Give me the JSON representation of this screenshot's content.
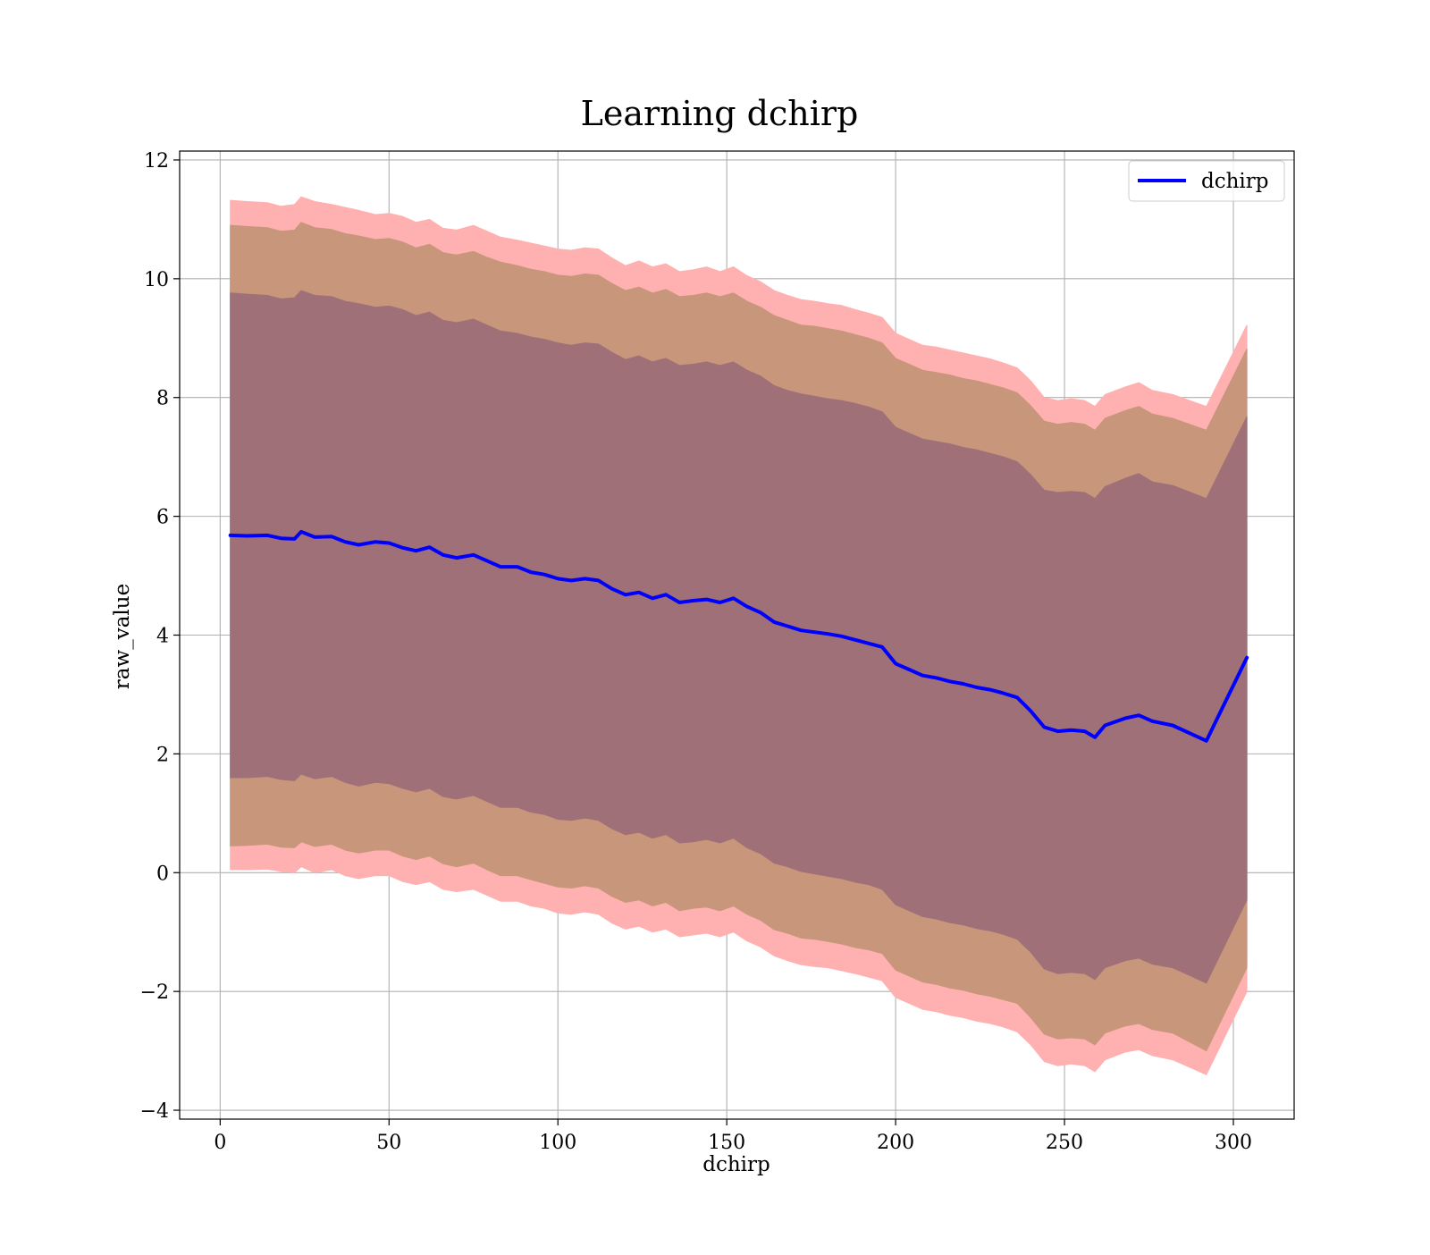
{
  "chart_data": {
    "type": "line",
    "title": "Learning dchirp",
    "xlabel": "dchirp",
    "ylabel": "raw_value",
    "xlim": [
      -12,
      318
    ],
    "ylim": [
      -4.15,
      12.15
    ],
    "grid": true,
    "legend_position": "top-right",
    "x_ticks": [
      0,
      50,
      100,
      150,
      200,
      250,
      300
    ],
    "x_tick_labels": [
      "0",
      "50",
      "100",
      "150",
      "200",
      "250",
      "300"
    ],
    "y_ticks": [
      -4,
      -2,
      0,
      2,
      4,
      6,
      8,
      10,
      12
    ],
    "y_tick_labels": [
      "−4",
      "−2",
      "0",
      "2",
      "4",
      "6",
      "8",
      "10",
      "12"
    ],
    "colors": {
      "line": "#0000ff",
      "band_outer": "#ffb0b0",
      "band_middle": "#c8967a",
      "band_inner": "#a07078",
      "grid": "#b0b0b0"
    },
    "series": [
      {
        "name": "dchirp",
        "x": [
          3,
          8,
          14,
          18,
          22,
          24,
          28,
          33,
          37,
          41,
          46,
          50,
          54,
          58,
          62,
          66,
          70,
          75,
          79,
          83,
          88,
          92,
          96,
          100,
          104,
          108,
          112,
          116,
          120,
          124,
          128,
          132,
          136,
          140,
          144,
          148,
          152,
          156,
          160,
          164,
          168,
          172,
          176,
          180,
          184,
          188,
          192,
          196,
          200,
          204,
          208,
          212,
          216,
          220,
          224,
          228,
          232,
          236,
          240,
          244,
          248,
          252,
          256,
          259,
          262,
          268,
          272,
          276,
          282,
          292,
          304
        ],
        "y": [
          5.68,
          5.67,
          5.68,
          5.63,
          5.62,
          5.74,
          5.65,
          5.66,
          5.57,
          5.52,
          5.57,
          5.55,
          5.47,
          5.42,
          5.48,
          5.35,
          5.3,
          5.35,
          5.25,
          5.15,
          5.15,
          5.06,
          5.02,
          4.95,
          4.92,
          4.95,
          4.92,
          4.78,
          4.68,
          4.72,
          4.62,
          4.68,
          4.55,
          4.58,
          4.6,
          4.55,
          4.62,
          4.48,
          4.38,
          4.22,
          4.15,
          4.08,
          4.05,
          4.02,
          3.98,
          3.92,
          3.86,
          3.8,
          3.52,
          3.42,
          3.32,
          3.28,
          3.22,
          3.18,
          3.12,
          3.08,
          3.02,
          2.95,
          2.72,
          2.45,
          2.38,
          2.4,
          2.38,
          2.28,
          2.48,
          2.6,
          2.65,
          2.55,
          2.48,
          2.22,
          3.62
        ]
      }
    ],
    "bands": [
      {
        "x": [
          3,
          8,
          14,
          18,
          22,
          24,
          28,
          33,
          37,
          41,
          46,
          50,
          54,
          58,
          62,
          66,
          70,
          75,
          79,
          83,
          88,
          92,
          96,
          100,
          104,
          108,
          112,
          116,
          120,
          124,
          128,
          132,
          136,
          140,
          144,
          148,
          152,
          156,
          160,
          164,
          168,
          172,
          176,
          180,
          184,
          188,
          192,
          196,
          200,
          204,
          208,
          212,
          216,
          220,
          224,
          228,
          232,
          236,
          240,
          244,
          248,
          252,
          256,
          259,
          262,
          268,
          272,
          276,
          282,
          292,
          304
        ],
        "upper": [
          11.32,
          11.3,
          11.28,
          11.22,
          11.25,
          11.38,
          11.3,
          11.25,
          11.2,
          11.15,
          11.08,
          11.1,
          11.05,
          10.95,
          11.0,
          10.85,
          10.82,
          10.9,
          10.8,
          10.7,
          10.65,
          10.6,
          10.55,
          10.5,
          10.48,
          10.52,
          10.5,
          10.35,
          10.22,
          10.3,
          10.2,
          10.25,
          10.12,
          10.15,
          10.2,
          10.12,
          10.2,
          10.05,
          9.95,
          9.8,
          9.72,
          9.65,
          9.62,
          9.58,
          9.55,
          9.48,
          9.42,
          9.35,
          9.08,
          8.98,
          8.88,
          8.85,
          8.8,
          8.75,
          8.7,
          8.65,
          8.58,
          8.5,
          8.28,
          8.0,
          7.95,
          7.98,
          7.95,
          7.85,
          8.05,
          8.18,
          8.25,
          8.12,
          8.05,
          7.85,
          9.22
        ],
        "lower": [
          0.05,
          0.05,
          0.06,
          0.02,
          0.0,
          0.1,
          0.0,
          0.05,
          -0.05,
          -0.1,
          -0.05,
          -0.05,
          -0.15,
          -0.2,
          -0.15,
          -0.28,
          -0.32,
          -0.28,
          -0.38,
          -0.48,
          -0.48,
          -0.56,
          -0.6,
          -0.68,
          -0.7,
          -0.66,
          -0.7,
          -0.85,
          -0.95,
          -0.9,
          -1.0,
          -0.95,
          -1.08,
          -1.05,
          -1.02,
          -1.08,
          -1.0,
          -1.15,
          -1.25,
          -1.4,
          -1.48,
          -1.55,
          -1.58,
          -1.6,
          -1.65,
          -1.7,
          -1.76,
          -1.82,
          -2.1,
          -2.2,
          -2.3,
          -2.34,
          -2.4,
          -2.44,
          -2.5,
          -2.54,
          -2.6,
          -2.68,
          -2.9,
          -3.18,
          -3.25,
          -3.22,
          -3.25,
          -3.35,
          -3.15,
          -3.02,
          -2.98,
          -3.08,
          -3.15,
          -3.4,
          -2.0
        ],
        "color": "#ffb0b0"
      },
      {
        "x": [
          3,
          8,
          14,
          18,
          22,
          24,
          28,
          33,
          37,
          41,
          46,
          50,
          54,
          58,
          62,
          66,
          70,
          75,
          79,
          83,
          88,
          92,
          96,
          100,
          104,
          108,
          112,
          116,
          120,
          124,
          128,
          132,
          136,
          140,
          144,
          148,
          152,
          156,
          160,
          164,
          168,
          172,
          176,
          180,
          184,
          188,
          192,
          196,
          200,
          204,
          208,
          212,
          216,
          220,
          224,
          228,
          232,
          236,
          240,
          244,
          248,
          252,
          256,
          259,
          262,
          268,
          272,
          276,
          282,
          292,
          304
        ],
        "upper": [
          10.9,
          10.88,
          10.86,
          10.8,
          10.82,
          10.95,
          10.86,
          10.83,
          10.76,
          10.72,
          10.66,
          10.68,
          10.62,
          10.52,
          10.58,
          10.44,
          10.4,
          10.46,
          10.36,
          10.28,
          10.22,
          10.16,
          10.12,
          10.06,
          10.04,
          10.08,
          10.06,
          9.92,
          9.8,
          9.86,
          9.76,
          9.82,
          9.7,
          9.72,
          9.76,
          9.7,
          9.76,
          9.62,
          9.52,
          9.38,
          9.3,
          9.22,
          9.2,
          9.16,
          9.12,
          9.06,
          9.0,
          8.92,
          8.66,
          8.56,
          8.46,
          8.42,
          8.38,
          8.32,
          8.28,
          8.22,
          8.16,
          8.08,
          7.86,
          7.6,
          7.55,
          7.58,
          7.55,
          7.45,
          7.65,
          7.78,
          7.85,
          7.72,
          7.65,
          7.45,
          8.82
        ],
        "lower": [
          0.45,
          0.46,
          0.48,
          0.43,
          0.42,
          0.52,
          0.44,
          0.48,
          0.38,
          0.33,
          0.38,
          0.38,
          0.28,
          0.22,
          0.28,
          0.15,
          0.1,
          0.16,
          0.05,
          -0.05,
          -0.05,
          -0.12,
          -0.18,
          -0.24,
          -0.26,
          -0.22,
          -0.26,
          -0.4,
          -0.5,
          -0.46,
          -0.56,
          -0.5,
          -0.64,
          -0.6,
          -0.58,
          -0.64,
          -0.56,
          -0.7,
          -0.8,
          -0.96,
          -1.02,
          -1.1,
          -1.12,
          -1.16,
          -1.2,
          -1.26,
          -1.3,
          -1.36,
          -1.64,
          -1.74,
          -1.84,
          -1.88,
          -1.94,
          -1.98,
          -2.04,
          -2.08,
          -2.14,
          -2.2,
          -2.44,
          -2.72,
          -2.8,
          -2.78,
          -2.8,
          -2.9,
          -2.7,
          -2.58,
          -2.54,
          -2.64,
          -2.7,
          -3.0,
          -1.6
        ],
        "color": "#c8967a"
      },
      {
        "x": [
          3,
          8,
          14,
          18,
          22,
          24,
          28,
          33,
          37,
          41,
          46,
          50,
          54,
          58,
          62,
          66,
          70,
          75,
          79,
          83,
          88,
          92,
          96,
          100,
          104,
          108,
          112,
          116,
          120,
          124,
          128,
          132,
          136,
          140,
          144,
          148,
          152,
          156,
          160,
          164,
          168,
          172,
          176,
          180,
          184,
          188,
          192,
          196,
          200,
          204,
          208,
          212,
          216,
          220,
          224,
          228,
          232,
          236,
          240,
          244,
          248,
          252,
          256,
          259,
          262,
          268,
          272,
          276,
          282,
          292,
          304
        ],
        "upper": [
          9.76,
          9.74,
          9.72,
          9.66,
          9.68,
          9.8,
          9.72,
          9.7,
          9.62,
          9.58,
          9.52,
          9.54,
          9.48,
          9.38,
          9.44,
          9.3,
          9.26,
          9.32,
          9.22,
          9.12,
          9.08,
          9.02,
          8.98,
          8.92,
          8.88,
          8.92,
          8.9,
          8.76,
          8.64,
          8.7,
          8.6,
          8.66,
          8.54,
          8.56,
          8.6,
          8.54,
          8.6,
          8.46,
          8.36,
          8.2,
          8.12,
          8.06,
          8.02,
          7.98,
          7.95,
          7.9,
          7.84,
          7.76,
          7.5,
          7.4,
          7.3,
          7.26,
          7.22,
          7.16,
          7.12,
          7.06,
          7.0,
          6.92,
          6.7,
          6.44,
          6.4,
          6.42,
          6.4,
          6.3,
          6.5,
          6.64,
          6.72,
          6.58,
          6.52,
          6.3,
          7.68
        ],
        "lower": [
          1.6,
          1.6,
          1.62,
          1.57,
          1.55,
          1.66,
          1.58,
          1.62,
          1.52,
          1.46,
          1.52,
          1.5,
          1.42,
          1.36,
          1.42,
          1.28,
          1.24,
          1.3,
          1.2,
          1.1,
          1.1,
          1.02,
          0.98,
          0.9,
          0.88,
          0.92,
          0.88,
          0.74,
          0.64,
          0.68,
          0.58,
          0.64,
          0.5,
          0.52,
          0.56,
          0.5,
          0.58,
          0.42,
          0.32,
          0.16,
          0.1,
          0.02,
          -0.02,
          -0.06,
          -0.1,
          -0.16,
          -0.2,
          -0.28,
          -0.54,
          -0.64,
          -0.74,
          -0.78,
          -0.84,
          -0.88,
          -0.94,
          -0.98,
          -1.04,
          -1.12,
          -1.34,
          -1.62,
          -1.7,
          -1.68,
          -1.7,
          -1.8,
          -1.6,
          -1.48,
          -1.44,
          -1.54,
          -1.6,
          -1.86,
          -0.46
        ],
        "color": "#a07078"
      }
    ]
  }
}
